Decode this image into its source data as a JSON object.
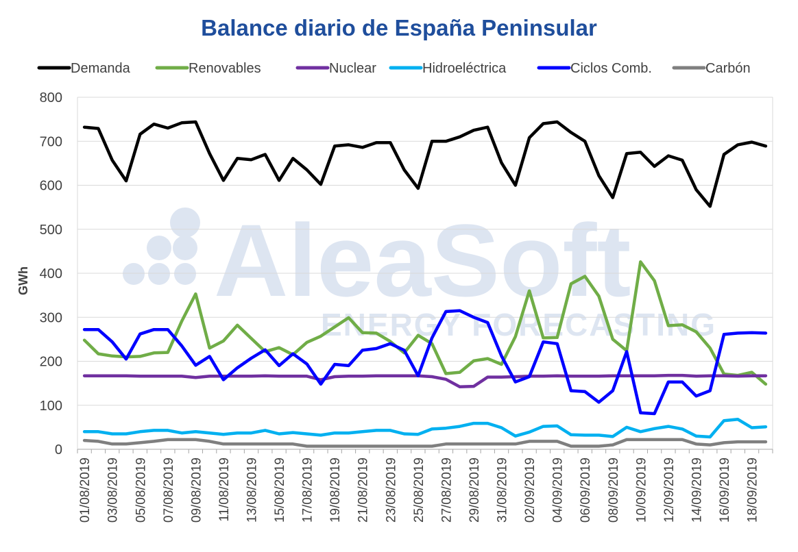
{
  "chart_data": {
    "type": "line",
    "title": "Balance diario de España Peninsular",
    "ylabel": "GWh",
    "xlabel": "",
    "ylim": [
      0,
      800
    ],
    "yticks": [
      0,
      100,
      200,
      300,
      400,
      500,
      600,
      700,
      800
    ],
    "grid": true,
    "legend_position": "top",
    "watermark": {
      "name": "AleaSoft",
      "tagline": "ENERGY FORECASTING"
    },
    "x": [
      "01/08/2019",
      "02/08/2019",
      "03/08/2019",
      "04/08/2019",
      "05/08/2019",
      "06/08/2019",
      "07/08/2019",
      "08/08/2019",
      "09/08/2019",
      "10/08/2019",
      "11/08/2019",
      "12/08/2019",
      "13/08/2019",
      "14/08/2019",
      "15/08/2019",
      "16/08/2019",
      "17/08/2019",
      "18/08/2019",
      "19/08/2019",
      "20/08/2019",
      "21/08/2019",
      "22/08/2019",
      "23/08/2019",
      "24/08/2019",
      "25/08/2019",
      "26/08/2019",
      "27/08/2019",
      "28/08/2019",
      "29/08/2019",
      "30/08/2019",
      "31/08/2019",
      "01/09/2019",
      "02/09/2019",
      "03/09/2019",
      "04/09/2019",
      "05/09/2019",
      "06/09/2019",
      "07/09/2019",
      "08/09/2019",
      "09/09/2019",
      "10/09/2019",
      "11/09/2019",
      "12/09/2019",
      "13/09/2019",
      "14/09/2019",
      "15/09/2019",
      "16/09/2019",
      "17/09/2019",
      "18/09/2019",
      "19/09/2019"
    ],
    "xtick_labels": [
      "01/08/2019",
      "03/08/2019",
      "05/08/2019",
      "07/08/2019",
      "09/08/2019",
      "11/08/2019",
      "13/08/2019",
      "15/08/2019",
      "17/08/2019",
      "19/08/2019",
      "21/08/2019",
      "23/08/2019",
      "25/08/2019",
      "27/08/2019",
      "29/08/2019",
      "31/08/2019",
      "02/09/2019",
      "04/09/2019",
      "06/09/2019",
      "08/09/2019",
      "10/09/2019",
      "12/09/2019",
      "14/09/2019",
      "16/09/2019",
      "18/09/2019"
    ],
    "series": [
      {
        "name": "Demanda",
        "color": "#000000",
        "values": [
          732,
          729,
          657,
          610,
          716,
          739,
          730,
          742,
          744,
          672,
          611,
          661,
          658,
          670,
          611,
          661,
          635,
          602,
          689,
          692,
          686,
          697,
          697,
          635,
          593,
          700,
          700,
          710,
          725,
          732,
          651,
          600,
          708,
          740,
          744,
          720,
          700,
          622,
          572,
          672,
          675,
          643,
          667,
          657,
          590,
          552,
          670,
          692,
          698,
          689
        ]
      },
      {
        "name": "Renovables",
        "color": "#70ad47",
        "values": [
          248,
          217,
          212,
          210,
          211,
          219,
          220,
          291,
          353,
          230,
          246,
          282,
          252,
          222,
          231,
          215,
          243,
          257,
          278,
          299,
          265,
          264,
          245,
          219,
          259,
          240,
          172,
          175,
          201,
          206,
          193,
          256,
          360,
          253,
          254,
          376,
          393,
          348,
          250,
          224,
          426,
          383,
          281,
          283,
          267,
          230,
          171,
          168,
          175,
          148
        ]
      },
      {
        "name": "Nuclear",
        "color": "#7030a0",
        "values": [
          167,
          167,
          167,
          167,
          166,
          166,
          166,
          166,
          163,
          166,
          166,
          166,
          166,
          167,
          166,
          166,
          166,
          158,
          165,
          166,
          166,
          167,
          167,
          167,
          167,
          165,
          159,
          142,
          143,
          164,
          164,
          165,
          166,
          166,
          167,
          166,
          166,
          166,
          167,
          167,
          167,
          167,
          168,
          168,
          166,
          167,
          167,
          166,
          167,
          167
        ]
      },
      {
        "name": "Hidroeléctrica",
        "color": "#00b0f0",
        "values": [
          40,
          40,
          35,
          35,
          40,
          43,
          43,
          37,
          40,
          37,
          34,
          37,
          37,
          43,
          35,
          38,
          35,
          32,
          37,
          37,
          40,
          43,
          43,
          35,
          34,
          46,
          48,
          52,
          59,
          59,
          49,
          30,
          39,
          52,
          53,
          33,
          32,
          32,
          29,
          50,
          40,
          47,
          52,
          46,
          30,
          28,
          65,
          68,
          49,
          51
        ]
      },
      {
        "name": "Ciclos Comb.",
        "color": "#0000ff",
        "values": [
          272,
          272,
          244,
          205,
          262,
          272,
          272,
          235,
          191,
          211,
          158,
          185,
          207,
          226,
          190,
          217,
          194,
          148,
          193,
          190,
          225,
          229,
          240,
          225,
          167,
          253,
          313,
          315,
          300,
          288,
          212,
          153,
          165,
          244,
          240,
          133,
          131,
          107,
          133,
          222,
          83,
          81,
          153,
          153,
          121,
          133,
          261,
          264,
          265,
          264
        ]
      },
      {
        "name": "Carbón",
        "color": "#7f7f7f",
        "values": [
          20,
          18,
          12,
          12,
          15,
          18,
          22,
          22,
          22,
          18,
          12,
          12,
          12,
          12,
          12,
          12,
          7,
          7,
          7,
          7,
          7,
          7,
          7,
          7,
          7,
          7,
          12,
          12,
          12,
          12,
          12,
          12,
          18,
          18,
          18,
          7,
          7,
          7,
          10,
          22,
          22,
          22,
          22,
          22,
          12,
          10,
          15,
          17,
          17,
          17
        ]
      }
    ]
  }
}
